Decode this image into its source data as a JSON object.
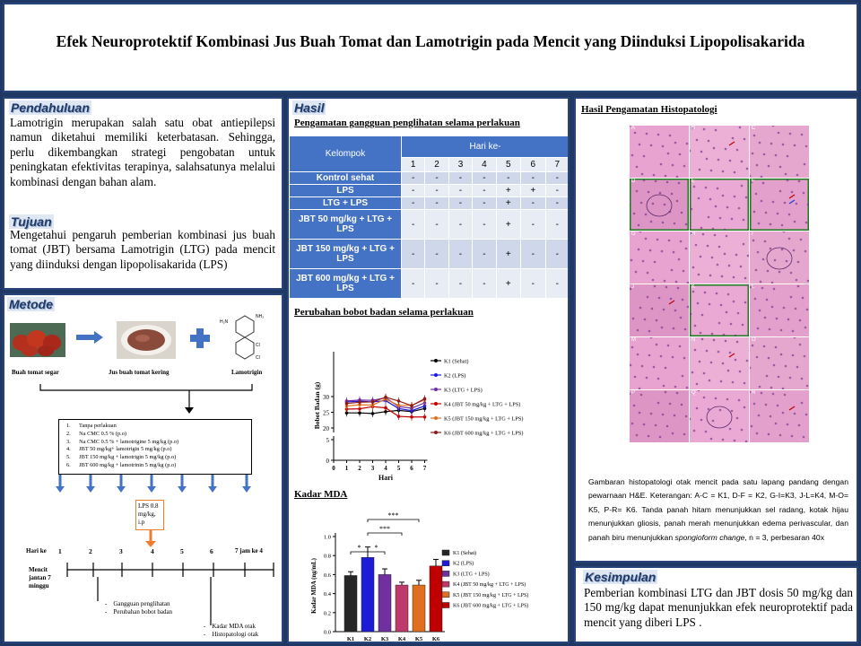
{
  "title": "Efek Neuroprotektif Kombinasi Jus Buah Tomat dan Lamotrigin pada Mencit yang Diinduksi Lipopolisakarida",
  "pendahuluan": {
    "heading": "Pendahuluan",
    "text": "Lamotrigin merupakan salah satu obat antiepilepsi namun diketahui memiliki keterbatasan. Sehingga, perlu dikembangkan strategi pengobatan untuk peningkatan efektivitas terapinya, salahsatunya melalui kombinasi dengan bahan alam."
  },
  "tujuan": {
    "heading": "Tujuan",
    "text": "Mengetahui pengaruh pemberian kombinasi jus buah tomat (JBT) bersama Lamotrigin (LTG) pada mencit yang diinduksi dengan lipopolisakarida (LPS)"
  },
  "metode": {
    "heading": "Metode",
    "img_labels": [
      "Buah tomat segar",
      "Jus buah tomat kering",
      "Lamotrigin"
    ],
    "groups": [
      "1.      Tanpa perlakuan",
      "2.      Na CMC 0.5 % (p.o)",
      "3.      Na CMC 0.5 % + lamotrigine 5 mg/kg (p.o)",
      "4.      JBT 50 mg/kg+ lamotrigin 5 mg/kg (p.o)",
      "5.      JBT 150 mg/kg + lamotrigin 5 mg/kg (p.o)",
      "6.      JBT 600 mg/kg + lamotrinin 5 mg/kg (p.o)"
    ],
    "lps_box": "LPS 0.8 mg/kg, i.p",
    "timeline_label": "Hari ke",
    "days": [
      "1",
      "2",
      "3",
      "4",
      "5",
      "6",
      "7 jam ke 4"
    ],
    "mice_label": "Mencit jantan 7 minggu",
    "obs_items": [
      "Gangguan penglihatan",
      "Perubahan bobot badan"
    ],
    "final_items": [
      "Kadar MDA otak",
      "Histopatologi otak"
    ]
  },
  "hasil": {
    "heading": "Hasil",
    "table_title": "Pengamatan gangguan penglihatan selama perlakuan",
    "table": {
      "col_group": "Kelompok",
      "day_header": "Hari ke-",
      "days": [
        "1",
        "2",
        "3",
        "4",
        "5",
        "6",
        "7"
      ],
      "rows": [
        {
          "label": "Kontrol sehat",
          "vals": [
            "-",
            "-",
            "-",
            "-",
            "-",
            "-",
            "-"
          ]
        },
        {
          "label": "LPS",
          "vals": [
            "-",
            "-",
            "-",
            "-",
            "+",
            "+",
            "-"
          ]
        },
        {
          "label": "LTG + LPS",
          "vals": [
            "-",
            "-",
            "-",
            "-",
            "+",
            "-",
            "-"
          ]
        },
        {
          "label": "JBT 50 mg/kg + LTG + LPS",
          "vals": [
            "-",
            "-",
            "-",
            "-",
            "+",
            "-",
            "-"
          ]
        },
        {
          "label": "JBT 150 mg/kg + LTG + LPS",
          "vals": [
            "-",
            "-",
            "-",
            "-",
            "+",
            "-",
            "-"
          ]
        },
        {
          "label": "JBT 600 mg/kg + LTG + LPS",
          "vals": [
            "-",
            "-",
            "-",
            "-",
            "+",
            "-",
            "-"
          ]
        }
      ]
    },
    "bw_title": "Perubahan bobot badan selama perlakuan",
    "mda_title": "Kadar MDA"
  },
  "chart_data": [
    {
      "type": "line",
      "ylabel": "Bobot Badan (g)",
      "xlabel": "Hari",
      "x": [
        1,
        2,
        3,
        4,
        5,
        6,
        7
      ],
      "xticks": [
        "0",
        "1",
        "2",
        "3",
        "4",
        "5",
        "6",
        "7"
      ],
      "yticks_upper": [
        "20",
        "25",
        "30"
      ],
      "yticks_lower": [
        "0",
        "5"
      ],
      "series": [
        {
          "name": "K1 (Sehat)",
          "color": "#000000",
          "values": [
            24.8,
            24.8,
            24.6,
            25.2,
            25.6,
            25.2,
            26.2
          ]
        },
        {
          "name": "K2 (LPS)",
          "color": "#1c1cd6",
          "values": [
            28.3,
            28.5,
            28.3,
            28.7,
            26.2,
            25.5,
            27.0
          ]
        },
        {
          "name": "K3 (LTG + LPS)",
          "color": "#7030a0",
          "values": [
            28.6,
            28.9,
            28.8,
            29.6,
            26.8,
            26.3,
            28.0
          ]
        },
        {
          "name": "K4 (JBT 50 mg/kg + LTG + LPS)",
          "color": "#c00000",
          "values": [
            26.0,
            26.1,
            26.8,
            26.4,
            23.7,
            23.5,
            23.5
          ]
        },
        {
          "name": "K5 (JBT 150 mg/kg + LTG + LPS)",
          "color": "#e07020",
          "values": [
            27.0,
            27.4,
            27.3,
            29.2,
            27.2,
            27.2,
            29.0
          ]
        },
        {
          "name": "K6 (JBT 600 mg/kg + LTG + LPS)",
          "color": "#8b1a1a",
          "values": [
            27.8,
            28.2,
            28.3,
            29.8,
            28.6,
            27.1,
            29.3
          ]
        }
      ]
    },
    {
      "type": "bar",
      "ylabel": "Kadar MDA (ng/mL)",
      "categories": [
        "K1",
        "K2",
        "K3",
        "K4",
        "K5",
        "K6"
      ],
      "values": [
        0.59,
        0.78,
        0.6,
        0.49,
        0.49,
        0.69
      ],
      "errors": [
        0.04,
        0.11,
        0.06,
        0.03,
        0.05,
        0.07
      ],
      "colors": [
        "#262626",
        "#1c1cd6",
        "#7030a0",
        "#c0396b",
        "#e07020",
        "#c00000"
      ],
      "yticks": [
        "0.0",
        "0.2",
        "0.4",
        "0.6",
        "0.8",
        "1.0"
      ],
      "ylim": [
        0,
        1.0
      ],
      "legend": [
        "K1 (Sehat)",
        "K2 (LPS)",
        "K3 (LTG + LPS)",
        "K4 (JBT 50 mg/kg + LTG + LPS)",
        "K5 (JBT 150 mg/kg + LTG + LPS)",
        "K6 (JBT 600 mg/kg + LTG + LPS)"
      ],
      "significance": [
        "*",
        "*",
        "***",
        "***"
      ]
    }
  ],
  "histo": {
    "heading": "Hasil Pengamatan Histopatologi",
    "panel_letters": [
      "A",
      "B",
      "C",
      "D",
      "E",
      "F",
      "G",
      "H",
      "I",
      "J",
      "K",
      "L",
      "M",
      "N",
      "O",
      "P",
      "Q",
      "R"
    ],
    "caption_1": "Gambaran histopatologi otak mencit pada satu lapang pandang dengan pewarnaan H&E. Keterangan: A-C = K1, D-F = K2, G-I=K3, J-L=K4, M-O= K5, P-R= K6. Tanda panah hitam menunjukkan sel radang, kotak hijau menunjukkan gliosis, panah merah menunjukkan edema perivascular, dan panah biru menunjukkan ",
    "caption_em": "spongioform change",
    "caption_2": ", n = 3, perbesaran 40x"
  },
  "kesimpulan": {
    "heading": "Kesimpulan",
    "text": "Pemberian kombinasi LTG dan JBT dosis 50 mg/kg dan 150 mg/kg dapat menunjukkan efek neuroprotektif pada mencit yang diberi LPS ."
  },
  "colors": {
    "navy": "#1f3864",
    "table_blue": "#4472c4",
    "histo_pink": "#e9a6d3",
    "gliosis_green": "#1e7b1e"
  }
}
